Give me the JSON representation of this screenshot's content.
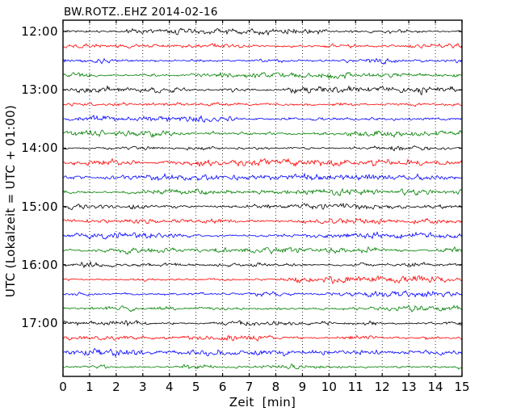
{
  "figure": {
    "background": "#ffffff",
    "frame_color": "#000000"
  },
  "chart_data": {
    "type": "line",
    "subtype": "seismogram-dayplot",
    "title": "BW.ROTZ..EHZ 2014-02-16",
    "xlabel": "Zeit  [min]",
    "ylabel": "UTC (Lokalzeit = UTC + 01:00)",
    "xlim": [
      0,
      15
    ],
    "x_ticks": [
      0,
      1,
      2,
      3,
      4,
      5,
      6,
      7,
      8,
      9,
      10,
      11,
      12,
      13,
      14,
      15
    ],
    "y_tick_labels": [
      "12:00",
      "13:00",
      "14:00",
      "15:00",
      "16:00",
      "17:00"
    ],
    "grid": {
      "vertical": true,
      "horizontal": false,
      "style": "dotted",
      "color": "#000000"
    },
    "minutes_per_trace": 15,
    "traces_per_hour": 4,
    "trace_color_cycle": [
      "#000000",
      "#ff0000",
      "#0000ff",
      "#008000"
    ],
    "signal_description": "continuous low-amplitude seismic background noise, approx ±3 px, bursty envelope",
    "traces": [
      {
        "start": "12:00",
        "color": "#000000"
      },
      {
        "start": "12:15",
        "color": "#ff0000"
      },
      {
        "start": "12:30",
        "color": "#0000ff"
      },
      {
        "start": "12:45",
        "color": "#008000"
      },
      {
        "start": "13:00",
        "color": "#000000"
      },
      {
        "start": "13:15",
        "color": "#ff0000"
      },
      {
        "start": "13:30",
        "color": "#0000ff"
      },
      {
        "start": "13:45",
        "color": "#008000"
      },
      {
        "start": "14:00",
        "color": "#000000"
      },
      {
        "start": "14:15",
        "color": "#ff0000"
      },
      {
        "start": "14:30",
        "color": "#0000ff"
      },
      {
        "start": "14:45",
        "color": "#008000"
      },
      {
        "start": "15:00",
        "color": "#000000"
      },
      {
        "start": "15:15",
        "color": "#ff0000"
      },
      {
        "start": "15:30",
        "color": "#0000ff"
      },
      {
        "start": "15:45",
        "color": "#008000"
      },
      {
        "start": "16:00",
        "color": "#000000"
      },
      {
        "start": "16:15",
        "color": "#ff0000"
      },
      {
        "start": "16:30",
        "color": "#0000ff"
      },
      {
        "start": "16:45",
        "color": "#008000"
      },
      {
        "start": "17:00",
        "color": "#000000"
      },
      {
        "start": "17:15",
        "color": "#ff0000"
      },
      {
        "start": "17:30",
        "color": "#0000ff"
      },
      {
        "start": "17:45",
        "color": "#008000"
      }
    ]
  }
}
